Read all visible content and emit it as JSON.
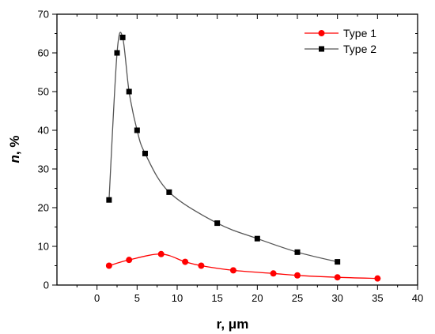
{
  "chart_data": {
    "type": "line",
    "title": "",
    "xlabel": "r, μm",
    "ylabel_var": "n",
    "ylabel_unit": ", %",
    "xlim": [
      -5,
      40
    ],
    "ylim": [
      0,
      70
    ],
    "x_ticks": [
      "0",
      "5",
      "10",
      "15",
      "20",
      "25",
      "30",
      "35",
      "40"
    ],
    "y_ticks": [
      "0",
      "10",
      "20",
      "30",
      "40",
      "50",
      "60",
      "70"
    ],
    "grid": false,
    "legend_position": "top-right",
    "series": [
      {
        "name": "Type 1",
        "color": "#ff0000",
        "marker": "circle",
        "x": [
          1.5,
          4,
          8,
          11,
          13,
          17,
          22,
          25,
          30,
          35
        ],
        "y": [
          5,
          6.5,
          8,
          6,
          5,
          3.8,
          3,
          2.5,
          2,
          1.7
        ]
      },
      {
        "name": "Type 2",
        "color": "#000000",
        "line_color": "#555555",
        "marker": "square",
        "x": [
          1.5,
          2.5,
          3.2,
          4,
          5,
          6,
          9,
          15,
          20,
          25,
          30
        ],
        "y": [
          22,
          60,
          64,
          50,
          40,
          34,
          24,
          16,
          12,
          8.5,
          6
        ]
      }
    ]
  }
}
